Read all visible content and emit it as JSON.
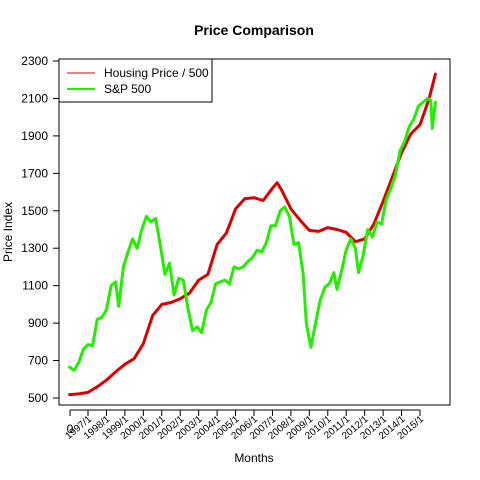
{
  "chart_data": {
    "type": "line",
    "title": "Price Comparison",
    "xlabel": "Months",
    "ylabel": "Price Index",
    "ylim": [
      450,
      2300
    ],
    "y_ticks": [
      500,
      700,
      900,
      1100,
      1300,
      1500,
      1700,
      1900,
      2100,
      2300
    ],
    "x_origin_label": "0",
    "x_tick_labels": [
      "1997/1",
      "1998/1",
      "1999/1",
      "2000/1",
      "2001/1",
      "2002/1",
      "2003/1",
      "2004/1",
      "2005/1",
      "2006/1",
      "2007/1",
      "2008/1",
      "2009/1",
      "2010/1",
      "2011/1",
      "2012/1",
      "2013/1",
      "2014/1",
      "2015/1"
    ],
    "legend_position": "top-left",
    "grid": false,
    "series": [
      {
        "name": "Housing Price / 500",
        "color": "#dd0000",
        "points": [
          [
            "1996/1",
            518
          ],
          [
            "1996/7",
            522
          ],
          [
            "1997/1",
            530
          ],
          [
            "1997/7",
            560
          ],
          [
            "1998/1",
            595
          ],
          [
            "1998/7",
            640
          ],
          [
            "1999/1",
            680
          ],
          [
            "1999/7",
            710
          ],
          [
            "2000/1",
            790
          ],
          [
            "2000/7",
            940
          ],
          [
            "2001/1",
            1000
          ],
          [
            "2001/7",
            1010
          ],
          [
            "2002/1",
            1030
          ],
          [
            "2002/7",
            1060
          ],
          [
            "2003/1",
            1130
          ],
          [
            "2003/7",
            1160
          ],
          [
            "2004/1",
            1320
          ],
          [
            "2004/7",
            1380
          ],
          [
            "2005/1",
            1510
          ],
          [
            "2005/7",
            1565
          ],
          [
            "2006/1",
            1570
          ],
          [
            "2006/7",
            1555
          ],
          [
            "2007/1",
            1620
          ],
          [
            "2007/4",
            1650
          ],
          [
            "2007/7",
            1610
          ],
          [
            "2008/1",
            1510
          ],
          [
            "2008/7",
            1450
          ],
          [
            "2009/1",
            1395
          ],
          [
            "2009/7",
            1390
          ],
          [
            "2010/1",
            1410
          ],
          [
            "2010/7",
            1400
          ],
          [
            "2011/1",
            1385
          ],
          [
            "2011/7",
            1335
          ],
          [
            "2012/1",
            1350
          ],
          [
            "2012/7",
            1430
          ],
          [
            "2013/1",
            1550
          ],
          [
            "2013/7",
            1680
          ],
          [
            "2014/1",
            1810
          ],
          [
            "2014/7",
            1910
          ],
          [
            "2015/1",
            1960
          ],
          [
            "2015/7",
            2100
          ],
          [
            "2015/11",
            2230
          ]
        ]
      },
      {
        "name": "S&P 500",
        "color": "#22ee00",
        "points": [
          [
            "1996/1",
            665
          ],
          [
            "1996/4",
            648
          ],
          [
            "1996/7",
            690
          ],
          [
            "1996/10",
            760
          ],
          [
            "1997/1",
            785
          ],
          [
            "1997/4",
            780
          ],
          [
            "1997/7",
            920
          ],
          [
            "1997/10",
            930
          ],
          [
            "1998/1",
            970
          ],
          [
            "1998/4",
            1100
          ],
          [
            "1998/7",
            1120
          ],
          [
            "1998/9",
            990
          ],
          [
            "1998/12",
            1200
          ],
          [
            "1999/3",
            1280
          ],
          [
            "1999/6",
            1350
          ],
          [
            "1999/9",
            1300
          ],
          [
            "1999/12",
            1400
          ],
          [
            "2000/3",
            1470
          ],
          [
            "2000/6",
            1440
          ],
          [
            "2000/9",
            1460
          ],
          [
            "2000/12",
            1320
          ],
          [
            "2001/3",
            1160
          ],
          [
            "2001/6",
            1220
          ],
          [
            "2001/9",
            1050
          ],
          [
            "2001/12",
            1140
          ],
          [
            "2002/3",
            1130
          ],
          [
            "2002/6",
            980
          ],
          [
            "2002/9",
            860
          ],
          [
            "2002/12",
            880
          ],
          [
            "2003/3",
            850
          ],
          [
            "2003/6",
            970
          ],
          [
            "2003/9",
            1010
          ],
          [
            "2003/12",
            1110
          ],
          [
            "2004/3",
            1120
          ],
          [
            "2004/6",
            1130
          ],
          [
            "2004/9",
            1110
          ],
          [
            "2004/12",
            1200
          ],
          [
            "2005/3",
            1190
          ],
          [
            "2005/6",
            1200
          ],
          [
            "2005/9",
            1230
          ],
          [
            "2005/12",
            1250
          ],
          [
            "2006/3",
            1290
          ],
          [
            "2006/6",
            1280
          ],
          [
            "2006/9",
            1330
          ],
          [
            "2006/12",
            1420
          ],
          [
            "2007/3",
            1420
          ],
          [
            "2007/6",
            1500
          ],
          [
            "2007/9",
            1520
          ],
          [
            "2007/12",
            1470
          ],
          [
            "2008/3",
            1320
          ],
          [
            "2008/6",
            1330
          ],
          [
            "2008/9",
            1160
          ],
          [
            "2008/11",
            900
          ],
          [
            "2009/2",
            770
          ],
          [
            "2009/5",
            900
          ],
          [
            "2009/8",
            1020
          ],
          [
            "2009/11",
            1090
          ],
          [
            "2010/2",
            1110
          ],
          [
            "2010/5",
            1170
          ],
          [
            "2010/7",
            1080
          ],
          [
            "2010/10",
            1180
          ],
          [
            "2011/1",
            1290
          ],
          [
            "2011/4",
            1350
          ],
          [
            "2011/7",
            1300
          ],
          [
            "2011/9",
            1170
          ],
          [
            "2011/12",
            1260
          ],
          [
            "2012/3",
            1400
          ],
          [
            "2012/6",
            1360
          ],
          [
            "2012/9",
            1440
          ],
          [
            "2012/12",
            1430
          ],
          [
            "2013/3",
            1560
          ],
          [
            "2013/6",
            1620
          ],
          [
            "2013/9",
            1690
          ],
          [
            "2013/12",
            1820
          ],
          [
            "2014/3",
            1870
          ],
          [
            "2014/6",
            1950
          ],
          [
            "2014/9",
            1990
          ],
          [
            "2014/12",
            2060
          ],
          [
            "2015/3",
            2080
          ],
          [
            "2015/6",
            2100
          ],
          [
            "2015/8",
            2090
          ],
          [
            "2015/9",
            1940
          ],
          [
            "2015/11",
            2080
          ]
        ]
      }
    ]
  }
}
